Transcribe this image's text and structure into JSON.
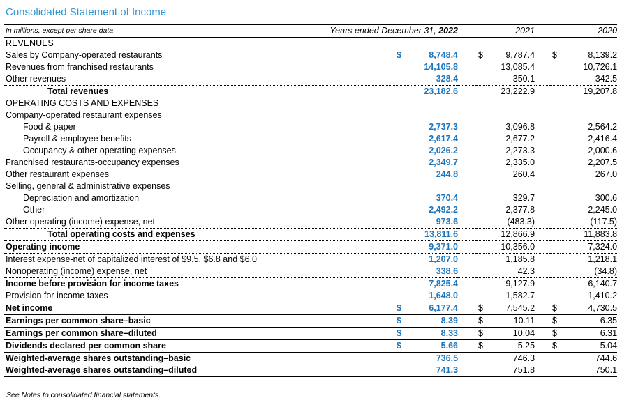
{
  "title": "Consolidated Statement of Income",
  "units_note": "In millions, except per share data",
  "footer_note": "See Notes to consolidated financial statements.",
  "colors": {
    "title_blue": "#2E96D3",
    "accent_blue": "#1C75BC"
  },
  "header": {
    "period_label": "Years ended December 31,",
    "current_year": "2022",
    "years": [
      "2021",
      "2020"
    ]
  },
  "table": {
    "currency_symbol": "$",
    "year_columns": [
      "2022",
      "2021",
      "2020"
    ],
    "rows": [
      {
        "label": "REVENUES",
        "section": true,
        "values": null,
        "border": "none"
      },
      {
        "label": "Sales by Company-operated restaurants",
        "dollar": true,
        "values": [
          "8,748.4",
          "9,787.4",
          "8,139.2"
        ],
        "border": "none"
      },
      {
        "label": "Revenues from franchised restaurants",
        "values": [
          "14,105.8",
          "13,085.4",
          "10,726.1"
        ],
        "border": "none"
      },
      {
        "label": "Other revenues",
        "values": [
          "328.4",
          "350.1",
          "342.5"
        ],
        "border": "dotted"
      },
      {
        "label": "Total revenues",
        "indent": 2,
        "bold": true,
        "values": [
          "23,182.6",
          "23,222.9",
          "19,207.8"
        ],
        "border": "none"
      },
      {
        "label": "OPERATING COSTS AND EXPENSES",
        "section": true,
        "values": null,
        "border": "none"
      },
      {
        "label": "Company-operated restaurant expenses",
        "values": null,
        "border": "none"
      },
      {
        "label": "Food & paper",
        "indent": 1,
        "values": [
          "2,737.3",
          "3,096.8",
          "2,564.2"
        ],
        "border": "none"
      },
      {
        "label": "Payroll & employee benefits",
        "indent": 1,
        "values": [
          "2,617.4",
          "2,677.2",
          "2,416.4"
        ],
        "border": "none"
      },
      {
        "label": "Occupancy & other operating expenses",
        "indent": 1,
        "values": [
          "2,026.2",
          "2,273.3",
          "2,000.6"
        ],
        "border": "none"
      },
      {
        "label": "Franchised restaurants-occupancy expenses",
        "values": [
          "2,349.7",
          "2,335.0",
          "2,207.5"
        ],
        "border": "none"
      },
      {
        "label": "Other restaurant expenses",
        "values": [
          "244.8",
          "260.4",
          "267.0"
        ],
        "border": "none"
      },
      {
        "label": "Selling, general & administrative expenses",
        "values": null,
        "border": "none"
      },
      {
        "label": "Depreciation and amortization",
        "indent": 1,
        "values": [
          "370.4",
          "329.7",
          "300.6"
        ],
        "border": "none"
      },
      {
        "label": "Other",
        "indent": 1,
        "values": [
          "2,492.2",
          "2,377.8",
          "2,245.0"
        ],
        "border": "none"
      },
      {
        "label": "Other operating (income) expense, net",
        "values": [
          "973.6",
          "(483.3)",
          "(117.5)"
        ],
        "border": "dotted"
      },
      {
        "label": "Total operating costs and expenses",
        "indent": 2,
        "bold": true,
        "values": [
          "13,811.6",
          "12,866.9",
          "11,883.8"
        ],
        "border": "dotted"
      },
      {
        "label": "Operating income",
        "bold": true,
        "values": [
          "9,371.0",
          "10,356.0",
          "7,324.0"
        ],
        "border": "dotted"
      },
      {
        "label": "Interest expense-net of capitalized interest of $9.5, $6.8 and $6.0",
        "values": [
          "1,207.0",
          "1,185.8",
          "1,218.1"
        ],
        "border": "none"
      },
      {
        "label": "Nonoperating (income) expense, net",
        "values": [
          "338.6",
          "42.3",
          "(34.8)"
        ],
        "border": "dotted"
      },
      {
        "label": "Income before provision for income taxes",
        "bold": true,
        "values": [
          "7,825.4",
          "9,127.9",
          "6,140.7"
        ],
        "border": "none"
      },
      {
        "label": "Provision for income taxes",
        "values": [
          "1,648.0",
          "1,582.7",
          "1,410.2"
        ],
        "border": "dotted"
      },
      {
        "label": "Net income",
        "bold": true,
        "dollar": true,
        "values": [
          "6,177.4",
          "7,545.2",
          "4,730.5"
        ],
        "border": "solid"
      },
      {
        "label": "Earnings per common share–basic",
        "bold": true,
        "dollar": true,
        "values": [
          "8.39",
          "10.11",
          "6.35"
        ],
        "border": "solid"
      },
      {
        "label": "Earnings per common share–diluted",
        "bold": true,
        "dollar": true,
        "values": [
          "8.33",
          "10.04",
          "6.31"
        ],
        "border": "solid"
      },
      {
        "label": "Dividends declared per common share",
        "bold": true,
        "dollar": true,
        "values": [
          "5.66",
          "5.25",
          "5.04"
        ],
        "border": "solid"
      },
      {
        "label": "Weighted-average shares outstanding–basic",
        "bold": true,
        "values": [
          "736.5",
          "746.3",
          "744.6"
        ],
        "border": "none"
      },
      {
        "label": "Weighted-average shares outstanding–diluted",
        "bold": true,
        "values": [
          "741.3",
          "751.8",
          "750.1"
        ],
        "border": "solid"
      }
    ]
  }
}
